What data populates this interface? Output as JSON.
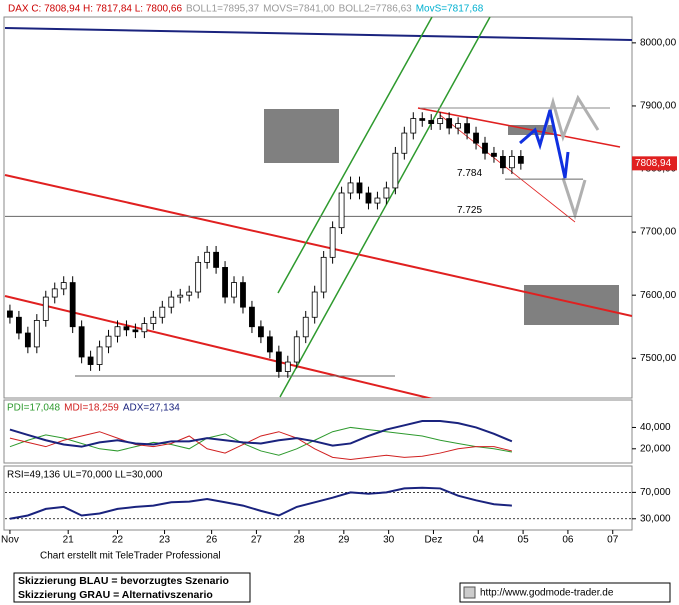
{
  "chart_data": {
    "type": "candlestick",
    "header": [
      {
        "text": "DAX C: 7808,94 H: 7817,84 L: 7800,66",
        "color": "#cc0000"
      },
      {
        "text": "BOLL1=7895,37",
        "color": "#999999"
      },
      {
        "text": "MOVS=7841,00",
        "color": "#999999"
      },
      {
        "text": "BOLL2=7786,63",
        "color": "#999999"
      },
      {
        "text": "MovS=7817,68",
        "color": "#00b0d0"
      }
    ],
    "last_price_label": "7808,94",
    "xlim": [
      -0.11,
      13.88
    ],
    "xticks": [
      {
        "value": 0,
        "label": "Nov"
      },
      {
        "value": 1.3,
        "label": "21"
      },
      {
        "value": 2.4,
        "label": "22"
      },
      {
        "value": 3.45,
        "label": "23"
      },
      {
        "value": 4.5,
        "label": "26"
      },
      {
        "value": 5.5,
        "label": "27"
      },
      {
        "value": 6.45,
        "label": "28"
      },
      {
        "value": 7.45,
        "label": "29"
      },
      {
        "value": 8.45,
        "label": "30"
      },
      {
        "value": 9.45,
        "label": "Dez"
      },
      {
        "value": 10.45,
        "label": "04"
      },
      {
        "value": 11.45,
        "label": "05"
      },
      {
        "value": 12.45,
        "label": "06"
      },
      {
        "value": 13.45,
        "label": "07"
      }
    ],
    "ylim": [
      7437,
      8041
    ],
    "yticks": [
      {
        "value": 7500,
        "label": "7500,00"
      },
      {
        "value": 7600,
        "label": "7600,00"
      },
      {
        "value": 7700,
        "label": "7700,00"
      },
      {
        "value": 7800,
        "label": "7800,00"
      },
      {
        "value": 7900,
        "label": "7900,00"
      },
      {
        "value": 8000,
        "label": "8000,00"
      }
    ],
    "levels": [
      {
        "value": 7784,
        "label": "7.784"
      },
      {
        "value": 7725,
        "label": "7.725"
      }
    ],
    "x": [
      0,
      0.2,
      0.4,
      0.6,
      0.8,
      1.0,
      1.2,
      1.4,
      1.6,
      1.8,
      2.0,
      2.2,
      2.4,
      2.6,
      2.8,
      3.0,
      3.2,
      3.4,
      3.6,
      3.8,
      4.0,
      4.2,
      4.4,
      4.6,
      4.8,
      5.0,
      5.2,
      5.4,
      5.6,
      5.8,
      6.0,
      6.2,
      6.4,
      6.6,
      6.8,
      7.0,
      7.2,
      7.4,
      7.6,
      7.8,
      8.0,
      8.2,
      8.4,
      8.6,
      8.8,
      9.0,
      9.2,
      9.4,
      9.6,
      9.8,
      10.0,
      10.2,
      10.4,
      10.6,
      10.8,
      11.0,
      11.2,
      11.4
    ],
    "open": [
      7575,
      7565,
      7540,
      7518,
      7560,
      7597,
      7610,
      7620,
      7550,
      7502,
      7490,
      7518,
      7535,
      7550,
      7545,
      7542,
      7555,
      7565,
      7581,
      7597,
      7600,
      7605,
      7652,
      7668,
      7644,
      7597,
      7620,
      7581,
      7550,
      7534,
      7510,
      7479,
      7494,
      7534,
      7565,
      7605,
      7660,
      7707,
      7762,
      7778,
      7762,
      7746,
      7754,
      7770,
      7825,
      7857,
      7880,
      7877,
      7872,
      7880,
      7865,
      7872,
      7857,
      7841,
      7825,
      7820,
      7802,
      7820
    ],
    "high": [
      7585,
      7575,
      7550,
      7570,
      7607,
      7620,
      7630,
      7630,
      7560,
      7512,
      7528,
      7545,
      7560,
      7560,
      7555,
      7565,
      7575,
      7591,
      7607,
      7610,
      7615,
      7662,
      7678,
      7678,
      7654,
      7630,
      7630,
      7591,
      7560,
      7544,
      7520,
      7504,
      7544,
      7575,
      7615,
      7670,
      7717,
      7772,
      7788,
      7788,
      7772,
      7764,
      7780,
      7835,
      7867,
      7890,
      7890,
      7887,
      7890,
      7890,
      7882,
      7882,
      7867,
      7851,
      7835,
      7830,
      7830,
      7830
    ],
    "low": [
      7555,
      7530,
      7508,
      7508,
      7550,
      7587,
      7600,
      7540,
      7492,
      7480,
      7480,
      7508,
      7525,
      7535,
      7532,
      7532,
      7545,
      7555,
      7571,
      7587,
      7590,
      7595,
      7642,
      7634,
      7587,
      7587,
      7571,
      7540,
      7524,
      7500,
      7469,
      7469,
      7484,
      7524,
      7555,
      7595,
      7650,
      7697,
      7752,
      7752,
      7736,
      7736,
      7744,
      7760,
      7815,
      7847,
      7867,
      7862,
      7862,
      7855,
      7855,
      7847,
      7831,
      7815,
      7810,
      7792,
      7792,
      7799
    ],
    "close": [
      7565,
      7540,
      7518,
      7560,
      7597,
      7610,
      7620,
      7550,
      7502,
      7490,
      7518,
      7535,
      7550,
      7545,
      7542,
      7555,
      7565,
      7581,
      7597,
      7600,
      7605,
      7652,
      7668,
      7644,
      7597,
      7620,
      7581,
      7550,
      7534,
      7510,
      7479,
      7494,
      7534,
      7565,
      7605,
      7660,
      7707,
      7762,
      7778,
      7762,
      7746,
      7754,
      7770,
      7825,
      7857,
      7880,
      7877,
      7872,
      7880,
      7865,
      7872,
      7857,
      7841,
      7825,
      7820,
      7802,
      7820,
      7809
    ],
    "dmi": {
      "x": [
        0,
        0.4,
        0.8,
        1.2,
        1.6,
        2.0,
        2.4,
        2.8,
        3.2,
        3.6,
        4.0,
        4.4,
        4.8,
        5.2,
        5.6,
        6.0,
        6.4,
        6.8,
        7.2,
        7.6,
        8.0,
        8.4,
        8.8,
        9.2,
        9.6,
        10.0,
        10.4,
        10.8,
        11.2
      ],
      "ylim": [
        6.7,
        65.7
      ],
      "yticks": [
        {
          "value": 20,
          "label": "20,000"
        },
        {
          "value": 40,
          "label": "40,000"
        }
      ],
      "series": [
        {
          "name": "PDI=17,048",
          "color": "#2e9a2e",
          "values": [
            22,
            28,
            33,
            30,
            25,
            20,
            18,
            22,
            26,
            24,
            20,
            30,
            34,
            25,
            18,
            14,
            20,
            28,
            36,
            40,
            38,
            36,
            34,
            32,
            28,
            25,
            22,
            20,
            17
          ]
        },
        {
          "name": "MDI=18,259",
          "color": "#d02020",
          "values": [
            30,
            26,
            22,
            28,
            32,
            36,
            30,
            24,
            22,
            25,
            32,
            20,
            16,
            24,
            32,
            36,
            30,
            20,
            12,
            10,
            12,
            14,
            12,
            13,
            16,
            20,
            22,
            22,
            18
          ]
        },
        {
          "name": "ADX=27,134",
          "color": "#1a237e",
          "values": [
            38,
            33,
            28,
            24,
            22,
            26,
            28,
            25,
            24,
            27,
            27,
            30,
            28,
            26,
            25,
            28,
            30,
            27,
            23,
            25,
            32,
            38,
            42,
            46,
            46,
            44,
            40,
            34,
            27
          ]
        }
      ]
    },
    "rsi": {
      "label": "RSI=49,136 UL=70,000 LL=30,000",
      "x": [
        0,
        0.4,
        0.8,
        1.2,
        1.6,
        2.0,
        2.4,
        2.8,
        3.2,
        3.6,
        4.0,
        4.4,
        4.8,
        5.2,
        5.6,
        6.0,
        6.4,
        6.8,
        7.2,
        7.6,
        8.0,
        8.4,
        8.8,
        9.2,
        9.6,
        10.0,
        10.4,
        10.8,
        11.2
      ],
      "ylim": [
        13,
        110
      ],
      "yticks": [
        {
          "value": 30,
          "label": "30,000"
        },
        {
          "value": 70,
          "label": "70,000"
        }
      ],
      "color": "#1a237e",
      "values": [
        30,
        35,
        45,
        48,
        35,
        38,
        45,
        48,
        50,
        55,
        56,
        60,
        55,
        50,
        42,
        35,
        48,
        55,
        62,
        70,
        68,
        70,
        76,
        77,
        76,
        65,
        58,
        52,
        50
      ]
    },
    "footer": {
      "credit": "Chart erstellt mit TeleTrader Professional",
      "legend": [
        "Skizzierung BLAU = bevorzugtes Szenario",
        "Skizzierung GRAU = Alternativszenario"
      ],
      "url": "http://www.godmode-trader.de"
    }
  }
}
